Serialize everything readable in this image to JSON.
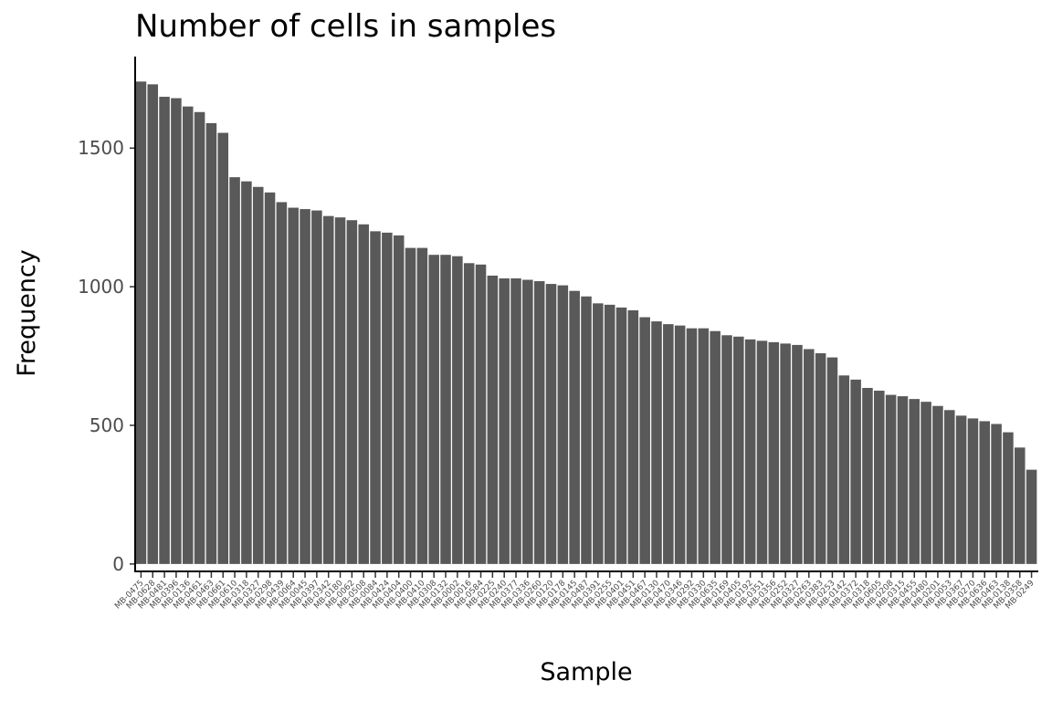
{
  "chart_data": {
    "type": "bar",
    "title": "Number of cells in samples",
    "xlabel": "Sample",
    "ylabel": "Frequency",
    "ylim": [
      -30,
      1830
    ],
    "yticks": [
      0,
      500,
      1000,
      1500
    ],
    "color": "#595959",
    "categories": [
      "MB-0475",
      "MB-0628",
      "MB-0481",
      "MB-0396",
      "MB-0136",
      "MB-0461",
      "MB-0463",
      "MB-0661",
      "MB-0610",
      "MB-0318",
      "MB-0327",
      "MB-0298",
      "MB-0439",
      "MB-0064",
      "MB-0045",
      "MB-0397",
      "MB-0342",
      "MB-0180",
      "MB-0062",
      "MB-0508",
      "MB-0084",
      "MB-0424",
      "MB-0404",
      "MB-0400",
      "MB-0410",
      "MB-0308",
      "MB-0132",
      "MB-0002",
      "MB-0016",
      "MB-0584",
      "MB-0225",
      "MB-0240",
      "MB-0377",
      "MB-0336",
      "MB-0260",
      "MB-0120",
      "MB-0178",
      "MB-0145",
      "MB-0487",
      "MB-0391",
      "MB-0255",
      "MB-0401",
      "MB-0451",
      "MB-0467",
      "MB-0130",
      "MB-0470",
      "MB-0346",
      "MB-0292",
      "MB-0330",
      "MB-0635",
      "MB-0169",
      "MB-0405",
      "MB-0192",
      "MB-0351",
      "MB-0356",
      "MB-0252",
      "MB-0327",
      "MB-0263",
      "MB-0383",
      "MB-0253",
      "MB-0142",
      "MB-0372",
      "MB-0318",
      "MB-0605",
      "MB-0208",
      "MB-0315",
      "MB-0455",
      "MB-0480",
      "MB-0201",
      "MB-0053",
      "MB-0367",
      "MB-0270",
      "MB-0636",
      "MB-0463",
      "MB-0138",
      "MB-0358",
      "MB-0249",
      "MB-0275",
      "MB-0154"
    ],
    "values": [
      1740,
      1730,
      1685,
      1680,
      1650,
      1630,
      1590,
      1555,
      1395,
      1380,
      1360,
      1340,
      1305,
      1285,
      1280,
      1275,
      1255,
      1250,
      1240,
      1225,
      1200,
      1195,
      1185,
      1140,
      1140,
      1115,
      1115,
      1110,
      1085,
      1080,
      1040,
      1030,
      1030,
      1025,
      1020,
      1010,
      1005,
      985,
      965,
      940,
      935,
      925,
      915,
      890,
      875,
      865,
      860,
      850,
      850,
      840,
      825,
      820,
      810,
      805,
      800,
      795,
      790,
      775,
      760,
      745,
      680,
      665,
      635,
      625,
      610,
      605,
      595,
      585,
      570,
      555,
      535,
      525,
      515,
      505,
      475,
      420,
      340,
      0,
      0
    ]
  }
}
